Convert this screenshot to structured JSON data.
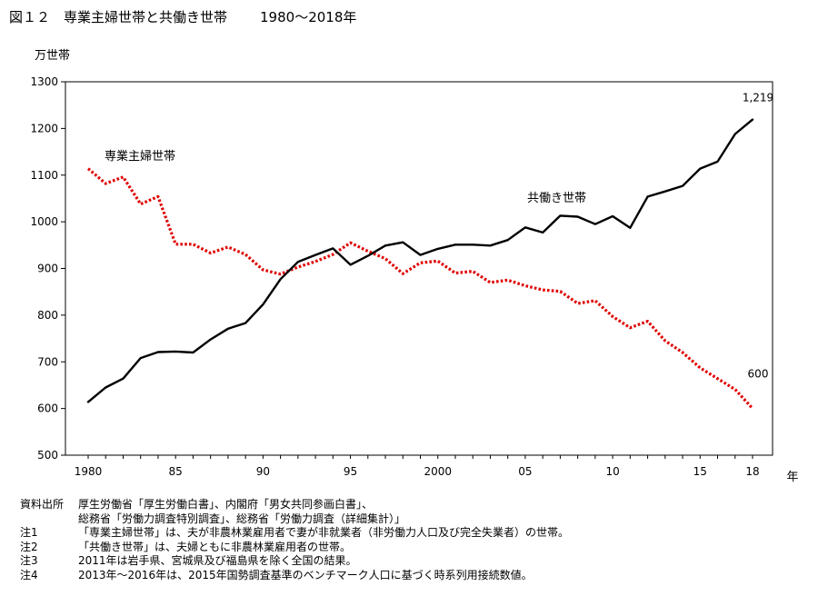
{
  "title": {
    "main": "図１２　専業主婦世帯と共働き世帯",
    "period": "1980～2018年"
  },
  "chart_data": {
    "type": "line",
    "ylabel": "万世帯",
    "xlabel": "年",
    "ylim": [
      500,
      1300
    ],
    "yticks": [
      500,
      600,
      700,
      800,
      900,
      1000,
      1100,
      1200,
      1300
    ],
    "x": [
      1980,
      1981,
      1982,
      1983,
      1984,
      1985,
      1986,
      1987,
      1988,
      1989,
      1990,
      1991,
      1992,
      1993,
      1994,
      1995,
      1996,
      1997,
      1998,
      1999,
      2000,
      2001,
      2002,
      2003,
      2004,
      2005,
      2006,
      2007,
      2008,
      2009,
      2010,
      2011,
      2012,
      2013,
      2014,
      2015,
      2016,
      2017,
      2018
    ],
    "xticks": [
      {
        "x": 1980,
        "label": "1980"
      },
      {
        "x": 1985,
        "label": "85"
      },
      {
        "x": 1990,
        "label": "90"
      },
      {
        "x": 1995,
        "label": "95"
      },
      {
        "x": 2000,
        "label": "2000"
      },
      {
        "x": 2005,
        "label": "05"
      },
      {
        "x": 2010,
        "label": "10"
      },
      {
        "x": 2015,
        "label": "15"
      },
      {
        "x": 2018,
        "label": "18"
      }
    ],
    "grid": false,
    "series": [
      {
        "name": "専業主婦世帯",
        "style": "dotted",
        "color": "#e00000",
        "values": [
          1114,
          1082,
          1096,
          1038,
          1054,
          952,
          952,
          933,
          946,
          930,
          897,
          888,
          903,
          915,
          930,
          955,
          937,
          921,
          889,
          912,
          916,
          890,
          894,
          870,
          875,
          863,
          854,
          851,
          825,
          831,
          797,
          773,
          787,
          745,
          720,
          687,
          664,
          641,
          600
        ]
      },
      {
        "name": "共働き世帯",
        "style": "solid",
        "color": "#000000",
        "values": [
          614,
          645,
          664,
          708,
          721,
          722,
          720,
          748,
          771,
          783,
          823,
          877,
          914,
          929,
          943,
          908,
          927,
          949,
          956,
          929,
          942,
          951,
          951,
          949,
          961,
          988,
          977,
          1013,
          1011,
          995,
          1012,
          987,
          1054,
          1065,
          1077,
          1114,
          1129,
          1188,
          1219
        ]
      }
    ],
    "annotations": [
      {
        "series": 1,
        "text": "1,219"
      },
      {
        "series": 0,
        "text": "600"
      }
    ]
  },
  "notes": [
    {
      "label": "資料出所",
      "text": "厚生労働省「厚生労働白書」、内閣府「男女共同参画白書」、"
    },
    {
      "label": "",
      "text": "総務省「労働力調査特別調査」、総務省「労働力調査（詳細集計）」"
    },
    {
      "label": "注1",
      "text": "「専業主婦世帯」は、夫が非農林業雇用者で妻が非就業者（非労働力人口及び完全失業者）の世帯。"
    },
    {
      "label": "注2",
      "text": "「共働き世帯」は、夫婦ともに非農林業雇用者の世帯。"
    },
    {
      "label": "注3",
      "text": "2011年は岩手県、宮城県及び福島県を除く全国の結果。"
    },
    {
      "label": "注4",
      "text": "2013年～2016年は、2015年国勢調査基準のベンチマーク人口に基づく時系列用接続数値。"
    }
  ]
}
